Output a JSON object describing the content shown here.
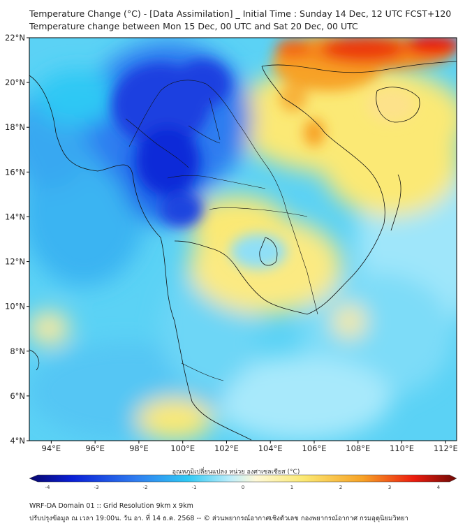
{
  "header": {
    "title_line1": "Temperature Change (°C) - [Data Assimilation] _ Initial Time : Sunday 14 Dec, 12 UTC FCST+120",
    "title_line2": "Temperature change between Mon 15 Dec, 00 UTC and Sat 20 Dec, 00 UTC"
  },
  "map": {
    "lat_labels": [
      "22°N",
      "20°N",
      "18°N",
      "16°N",
      "14°N",
      "12°N",
      "10°N",
      "8°N",
      "6°N",
      "4°N"
    ],
    "lon_labels": [
      "94°E",
      "96°E",
      "98°E",
      "100°E",
      "102°E",
      "104°E",
      "106°E",
      "108°E",
      "110°E",
      "112°E"
    ],
    "lat_range": [
      4,
      22
    ],
    "lon_range": [
      93,
      112.5
    ]
  },
  "colorbar": {
    "title": "อุณหภูมิเปลี่ยนแปลง หน่วย องศาเซลเซียส (°C)",
    "ticks": [
      "-4",
      "-3",
      "-2",
      "-1",
      "0",
      "1",
      "2",
      "3",
      "4"
    ],
    "range": [
      -4,
      4
    ]
  },
  "footer": {
    "line1": "WRF-DA Domain 01 :: Grid Resolution 9km x 9km",
    "line2": "ปรับปรุงข้อมูล ณ เวลา 19:00น. วัน อา. ที่ 14 ธ.ค. 2568 -- © ส่วนพยากรณ์อากาศเชิงตัวเลข กองพยากรณ์อากาศ กรมอุตุนิยมวิทยา"
  },
  "colors": {
    "deep_blue": "#0a1fd6",
    "blue": "#2f7df0",
    "cyan": "#2fc8f4",
    "light_cyan": "#bdeefb",
    "yellow": "#fbe974",
    "orange": "#f7a226",
    "red": "#ec1c0e"
  }
}
